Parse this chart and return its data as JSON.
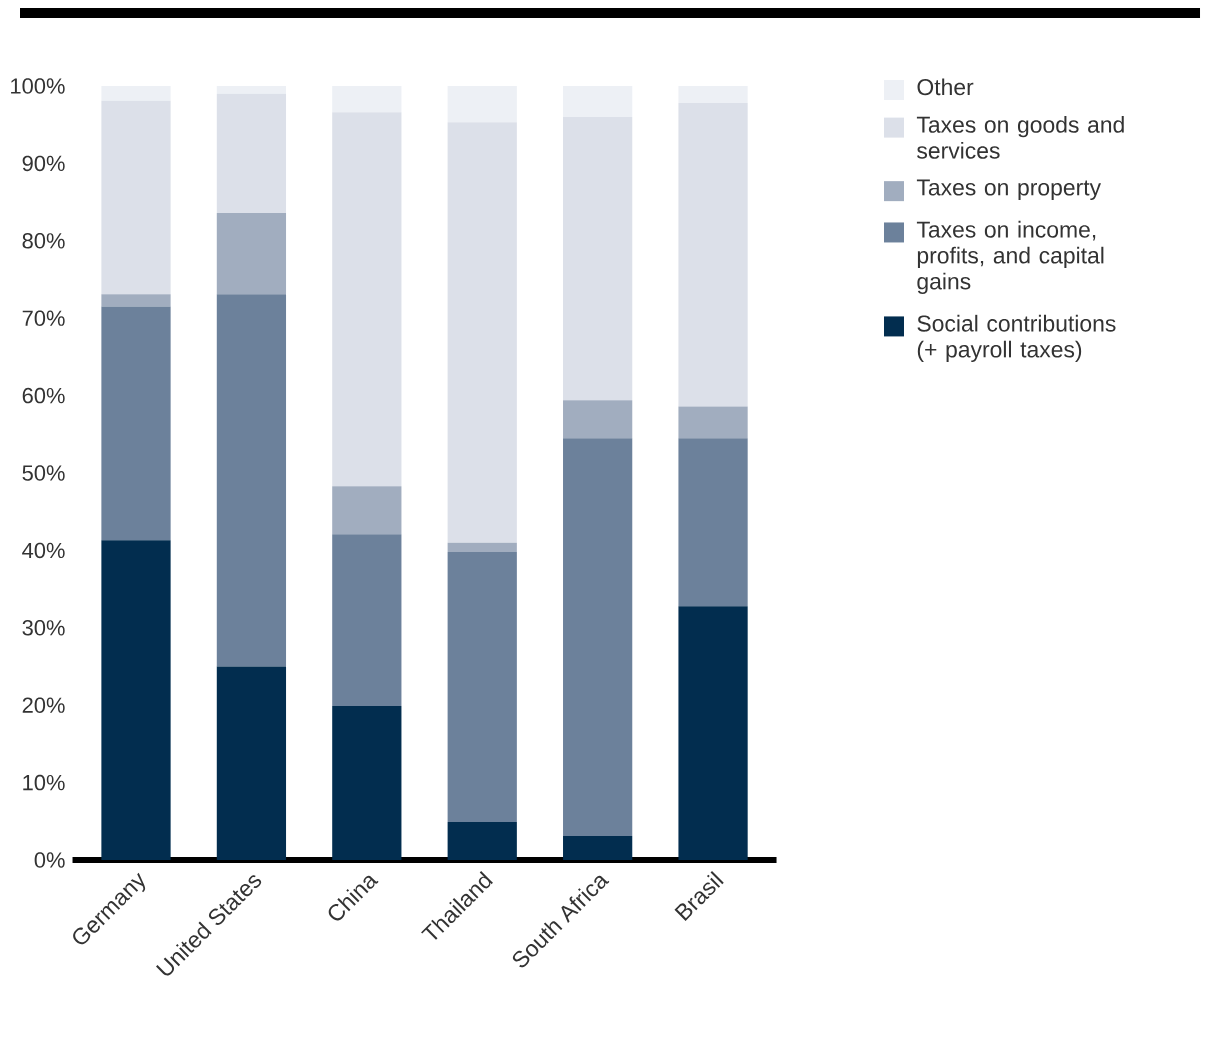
{
  "chart_data": {
    "type": "bar",
    "stacked": true,
    "categories": [
      "Germany",
      "United States",
      "China",
      "Thailand",
      "South Africa",
      "Brasil"
    ],
    "series": [
      {
        "name": "Social contributions (+ payroll taxes)",
        "color": "#022d4f",
        "values": [
          41.3,
          25.0,
          19.9,
          4.9,
          3.1,
          32.8
        ]
      },
      {
        "name": "Taxes on income, profits, and capital gains",
        "color": "#6c819b",
        "values": [
          30.2,
          48.1,
          22.2,
          34.9,
          51.4,
          21.7
        ]
      },
      {
        "name": "Taxes on property",
        "color": "#a1adbf",
        "values": [
          1.6,
          10.5,
          6.2,
          1.2,
          4.9,
          4.1
        ]
      },
      {
        "name": "Taxes on goods and services",
        "color": "#dce0e9",
        "values": [
          25.0,
          15.4,
          48.3,
          54.3,
          36.6,
          39.2
        ]
      },
      {
        "name": "Other",
        "color": "#edf0f5",
        "values": [
          1.9,
          1.0,
          3.4,
          4.7,
          4.0,
          2.2
        ]
      }
    ],
    "ylim": [
      0,
      100
    ],
    "yticks": [
      {
        "value": 0,
        "label": "0%"
      },
      {
        "value": 10,
        "label": "10%"
      },
      {
        "value": 20,
        "label": "20%"
      },
      {
        "value": 30,
        "label": "30%"
      },
      {
        "value": 40,
        "label": "40%"
      },
      {
        "value": 50,
        "label": "50%"
      },
      {
        "value": 60,
        "label": "60%"
      },
      {
        "value": 70,
        "label": "70%"
      },
      {
        "value": 80,
        "label": "80%"
      },
      {
        "value": 90,
        "label": "90%"
      },
      {
        "value": 100,
        "label": "100%"
      }
    ],
    "legend": "right"
  }
}
